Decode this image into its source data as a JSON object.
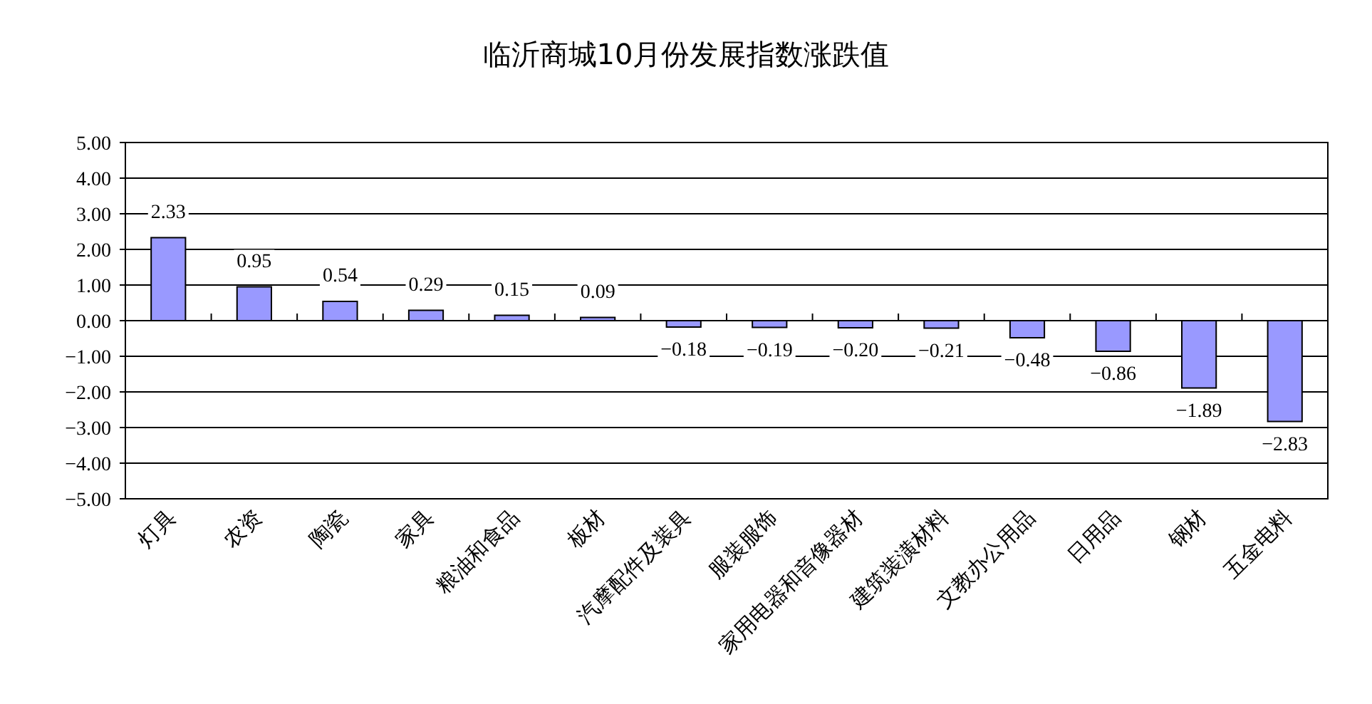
{
  "chart_data": {
    "type": "bar",
    "title": "临沂商城10月份发展指数涨跌值",
    "categories": [
      "灯具",
      "农资",
      "陶瓷",
      "家具",
      "粮油和食品",
      "板材",
      "汽摩配件及装具",
      "服装服饰",
      "家用电器和音像器材",
      "建筑装潢材料",
      "文教办公用品",
      "日用品",
      "钢材",
      "五金电料"
    ],
    "values": [
      2.33,
      0.95,
      0.54,
      0.29,
      0.15,
      0.09,
      -0.18,
      -0.19,
      -0.2,
      -0.21,
      -0.48,
      -0.86,
      -1.89,
      -2.83
    ],
    "value_labels": [
      "2.33",
      "0.95",
      "0.54",
      "0.29",
      "0.15",
      "0.09",
      "−0.18",
      "−0.19",
      "−0.20",
      "−0.21",
      "−0.48",
      "−0.86",
      "−1.89",
      "−2.83"
    ],
    "color": "#9999ff",
    "ylim": [
      -5,
      5
    ],
    "yticks": [
      {
        "value": 5,
        "label": "5.00"
      },
      {
        "value": 4,
        "label": "4.00"
      },
      {
        "value": 3,
        "label": "3.00"
      },
      {
        "value": 2,
        "label": "2.00"
      },
      {
        "value": 1,
        "label": "1.00"
      },
      {
        "value": 0,
        "label": "0.00"
      },
      {
        "value": -1,
        "label": "−1.00"
      },
      {
        "value": -2,
        "label": "−2.00"
      },
      {
        "value": -3,
        "label": "−3.00"
      },
      {
        "value": -4,
        "label": "−4.00"
      },
      {
        "value": -5,
        "label": "−5.00"
      }
    ],
    "grid": "y"
  }
}
